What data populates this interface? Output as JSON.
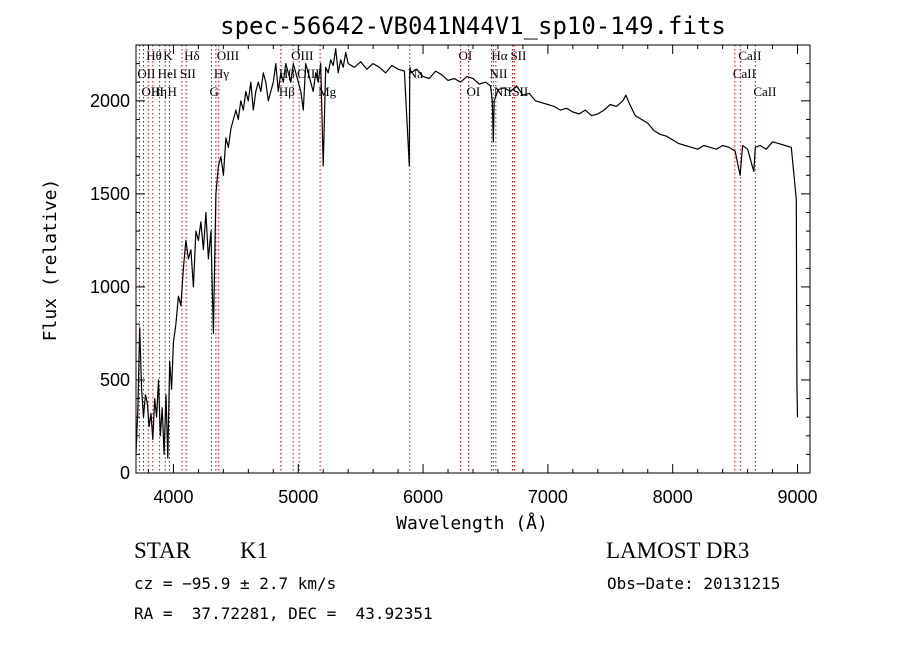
{
  "chart_data": {
    "type": "line",
    "title": "spec-56642-VB041N44V1_sp10-149.fits",
    "xlabel": "Wavelength (Å)",
    "ylabel": "Flux (relative)",
    "xlim": [
      3700,
      9100
    ],
    "ylim": [
      0,
      2300
    ],
    "xticks": [
      4000,
      5000,
      6000,
      7000,
      8000,
      9000
    ],
    "yticks": [
      0,
      500,
      1000,
      1500,
      2000
    ],
    "series": [
      {
        "name": "spectrum",
        "x": [
          3700,
          3715,
          3730,
          3745,
          3760,
          3775,
          3790,
          3805,
          3820,
          3835,
          3850,
          3865,
          3880,
          3895,
          3910,
          3925,
          3940,
          3955,
          3970,
          3985,
          4000,
          4020,
          4040,
          4060,
          4080,
          4100,
          4120,
          4140,
          4160,
          4180,
          4200,
          4220,
          4240,
          4260,
          4280,
          4300,
          4320,
          4340,
          4360,
          4380,
          4400,
          4420,
          4440,
          4460,
          4480,
          4500,
          4520,
          4540,
          4560,
          4580,
          4600,
          4620,
          4640,
          4660,
          4680,
          4700,
          4720,
          4740,
          4760,
          4780,
          4800,
          4820,
          4840,
          4860,
          4880,
          4900,
          4920,
          4940,
          4960,
          4980,
          5000,
          5020,
          5040,
          5060,
          5080,
          5100,
          5120,
          5140,
          5160,
          5180,
          5200,
          5220,
          5240,
          5260,
          5280,
          5300,
          5320,
          5340,
          5360,
          5380,
          5400,
          5450,
          5500,
          5550,
          5600,
          5650,
          5700,
          5750,
          5800,
          5850,
          5890,
          5893,
          5896,
          5900,
          5950,
          6000,
          6050,
          6100,
          6150,
          6200,
          6250,
          6300,
          6350,
          6400,
          6450,
          6500,
          6540,
          6555,
          6563,
          6570,
          6600,
          6650,
          6700,
          6750,
          6800,
          6850,
          6900,
          6950,
          7000,
          7050,
          7100,
          7150,
          7200,
          7250,
          7300,
          7350,
          7400,
          7450,
          7500,
          7550,
          7600,
          7625,
          7650,
          7700,
          7750,
          7800,
          7850,
          7900,
          7950,
          8000,
          8050,
          8100,
          8150,
          8200,
          8250,
          8300,
          8350,
          8400,
          8450,
          8500,
          8540,
          8560,
          8600,
          8650,
          8662,
          8700,
          8750,
          8800,
          8850,
          8900,
          8950,
          8990,
          8995,
          9000
        ],
        "y": [
          100,
          350,
          780,
          450,
          300,
          420,
          380,
          250,
          320,
          180,
          400,
          300,
          500,
          200,
          350,
          100,
          420,
          80,
          600,
          450,
          700,
          800,
          950,
          900,
          1100,
          1250,
          1150,
          1200,
          1000,
          1300,
          1250,
          1350,
          1200,
          1400,
          1150,
          1300,
          750,
          1500,
          1650,
          1700,
          1600,
          1800,
          1750,
          1850,
          1900,
          1950,
          1900,
          2000,
          1950,
          2050,
          2000,
          2100,
          1950,
          2050,
          2100,
          2050,
          2150,
          2100,
          2000,
          2050,
          2100,
          2200,
          2050,
          2150,
          2100,
          2200,
          2150,
          2100,
          2200,
          2150,
          2100,
          2050,
          1950,
          2200,
          2150,
          2100,
          2050,
          2150,
          2100,
          2200,
          1650,
          2180,
          2150,
          2220,
          2190,
          2280,
          2150,
          2220,
          2180,
          2260,
          2200,
          2180,
          2210,
          2170,
          2200,
          2180,
          2150,
          2190,
          2170,
          2160,
          1650,
          2120,
          2180,
          2150,
          2170,
          2130,
          2120,
          2160,
          2140,
          2110,
          2120,
          2100,
          2130,
          2120,
          2090,
          2100,
          2080,
          2000,
          1780,
          2000,
          2060,
          2070,
          2050,
          2080,
          2030,
          2040,
          2000,
          1990,
          1980,
          1970,
          1950,
          1960,
          1940,
          1930,
          1950,
          1920,
          1930,
          1950,
          1980,
          1970,
          2000,
          2030,
          1990,
          1920,
          1900,
          1880,
          1840,
          1820,
          1810,
          1790,
          1770,
          1760,
          1750,
          1740,
          1760,
          1750,
          1740,
          1760,
          1750,
          1730,
          1600,
          1760,
          1740,
          1620,
          1750,
          1760,
          1740,
          1780,
          1770,
          1760,
          1750,
          1470,
          480,
          300
        ]
      }
    ],
    "line_markers": [
      {
        "label": "Hθ",
        "wavelength": 3798,
        "row": 0
      },
      {
        "label": "OII",
        "wavelength": 3727,
        "row": 1
      },
      {
        "label": "OIII",
        "wavelength": 3760,
        "row": 2
      },
      {
        "label": "K",
        "wavelength": 3934,
        "row": 0
      },
      {
        "label": "HeI",
        "wavelength": 3889,
        "row": 1
      },
      {
        "label": "Hη",
        "wavelength": 3835,
        "row": 2
      },
      {
        "label": "SII",
        "wavelength": 4068,
        "row": 1
      },
      {
        "label": "H",
        "wavelength": 3968,
        "row": 2
      },
      {
        "label": "Hδ",
        "wavelength": 4102,
        "row": 0
      },
      {
        "label": "OIII",
        "wavelength": 4363,
        "row": 0
      },
      {
        "label": "Hγ",
        "wavelength": 4340,
        "row": 1
      },
      {
        "label": "G",
        "wavelength": 4305,
        "row": 2
      },
      {
        "label": "OIII",
        "wavelength": 4959,
        "row": 0
      },
      {
        "label": "Hβ",
        "wavelength": 4861,
        "row": 1
      },
      {
        "label": "Hβ",
        "wavelength": 4861,
        "row": 2
      },
      {
        "label": "OIII",
        "wavelength": 5007,
        "row": 1
      },
      {
        "label": "Mg",
        "wavelength": 5175,
        "row": 2
      },
      {
        "label": "Na",
        "wavelength": 5893,
        "row": 1
      },
      {
        "label": "OI",
        "wavelength": 6300,
        "row": 0
      },
      {
        "label": "OI",
        "wavelength": 6364,
        "row": 2
      },
      {
        "label": "Hα",
        "wavelength": 6563,
        "row": 0
      },
      {
        "label": "SII",
        "wavelength": 6716,
        "row": 0
      },
      {
        "label": "NII",
        "wavelength": 6548,
        "row": 1
      },
      {
        "label": "NII",
        "wavelength": 6583,
        "row": 2
      },
      {
        "label": "SII",
        "wavelength": 6731,
        "row": 2
      },
      {
        "label": "CaII",
        "wavelength": 8542,
        "row": 0
      },
      {
        "label": "CaII",
        "wavelength": 8498,
        "row": 1
      },
      {
        "label": "CaII",
        "wavelength": 8662,
        "row": 2
      }
    ]
  },
  "info": {
    "class": "STAR",
    "subclass": "K1",
    "survey": "LAMOST DR3",
    "cz": "cz = −95.9 ± 2.7 km/s",
    "obs_date": "Obs−Date: 20131215",
    "coords": "RA =  37.72281, DEC =  43.92351"
  },
  "colors": {
    "spectrum": "#000000",
    "marker": "#cc0000",
    "axes": "#000000"
  }
}
